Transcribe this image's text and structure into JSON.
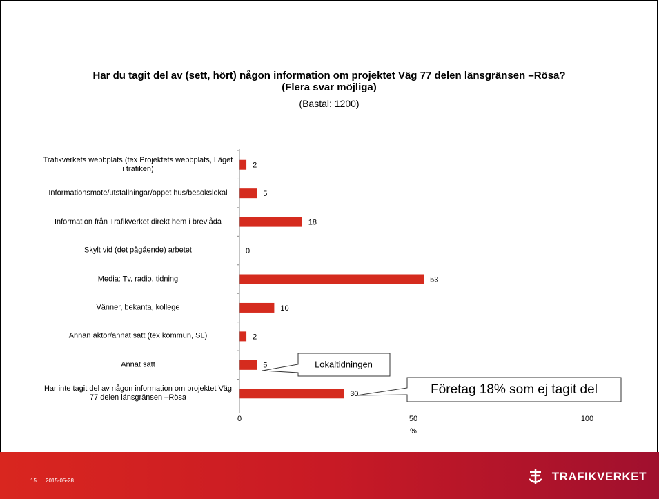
{
  "chart_data": {
    "type": "bar",
    "orientation": "horizontal",
    "title": "Har du tagit del av (sett, hört) någon information om projektet Väg 77 delen länsgränsen –Rösa? (Flera svar möjliga)",
    "subtitle": "(Bastal: 1200)",
    "categories": [
      "Trafikverkets webbplats (tex Projektets webbplats, Läget i trafiken)",
      "Informationsmöte/utställningar/öppet hus/besökslokal",
      "Information från Trafikverket direkt hem i brevlåda",
      "Skylt vid (det pågående) arbetet",
      "Media: Tv, radio, tidning",
      "Vänner, bekanta, kollege",
      "Annan aktör/annat sätt (tex kommun, SL)",
      "Annat sätt",
      "Har inte tagit del av någon information om projektet Väg 77 delen länsgränsen –Rösa"
    ],
    "values": [
      2,
      5,
      18,
      0,
      53,
      10,
      2,
      5,
      30
    ],
    "color": "#d52b1e",
    "xlim": [
      0,
      100
    ],
    "xticks": [
      0,
      50,
      100
    ],
    "xlabel": "%",
    "annotations": [
      "Lokaltidningen",
      "Företag 18% som ej tagit del"
    ]
  },
  "footer": {
    "page": "15",
    "date": "2015-05-28",
    "logo": "TRAFIKVERKET"
  }
}
